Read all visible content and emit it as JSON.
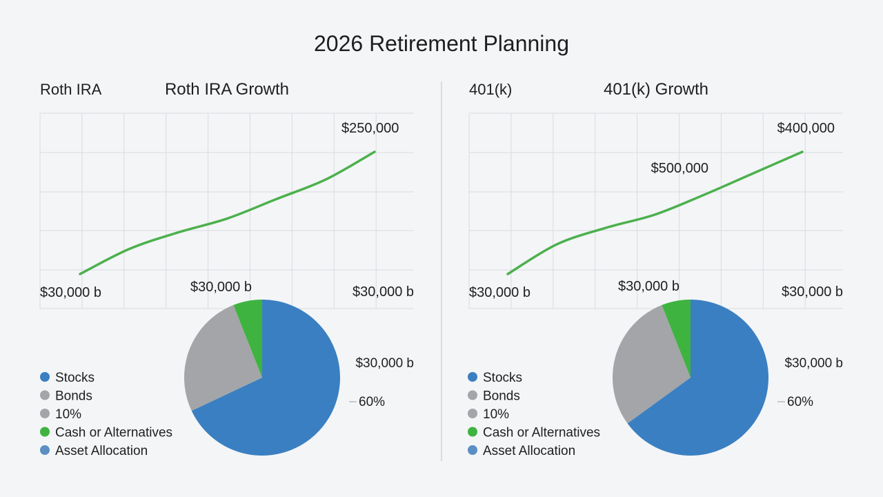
{
  "title": "2026 Retirement Planning",
  "colors": {
    "background": "#f3f5f7",
    "grid": "#d9dce0",
    "divider": "#cfd3d7",
    "line": "#4cb04c",
    "stocks": "#3a7fc1",
    "bonds": "#a3a5a8",
    "cash": "#3fb33f"
  },
  "chart_data": [
    {
      "type": "line",
      "panel_label": "Roth IRA",
      "title": "Roth IRA Growth",
      "series": [
        {
          "values": [
            30000,
            75000,
            105000,
            130000,
            165000,
            200000,
            250000
          ]
        }
      ],
      "annotations": [
        "$250,000",
        "$30,000 b",
        "$30,000 b",
        "$30,000 b"
      ]
    },
    {
      "type": "pie",
      "panel": "Roth IRA",
      "slices": [
        {
          "label": "Stocks",
          "value": 68,
          "color": "#3a7fc1"
        },
        {
          "label": "Bonds",
          "value": 26,
          "color": "#a3a5a8"
        },
        {
          "label": "Cash or Alternatives",
          "value": 6,
          "color": "#3fb33f"
        }
      ],
      "legend": [
        {
          "label": "Stocks",
          "color": "#3a7fc1"
        },
        {
          "label": "Bonds",
          "color": "#a3a5a8"
        },
        {
          "label": "10%",
          "color": "#a3a5a8"
        },
        {
          "label": "Cash or Alternatives",
          "color": "#3fb33f"
        },
        {
          "label": "Asset Allocation",
          "color": "#5b8fc4"
        }
      ],
      "legend_placement": "left",
      "annotations": [
        "$30,000 b",
        "60%"
      ]
    },
    {
      "type": "line",
      "panel_label": "401(k)",
      "title": "401(k) Growth",
      "series": [
        {
          "values": [
            30000,
            120000,
            170000,
            210000,
            270000,
            335000,
            400000
          ]
        }
      ],
      "annotations": [
        "$400,000",
        "$500,000",
        "$30,000 b",
        "$30,000 b",
        "$30,000 b"
      ]
    },
    {
      "type": "pie",
      "panel": "401(k)",
      "slices": [
        {
          "label": "Stocks",
          "value": 65,
          "color": "#3a7fc1"
        },
        {
          "label": "Bonds",
          "value": 29,
          "color": "#a3a5a8"
        },
        {
          "label": "Cash or Alternatives",
          "value": 6,
          "color": "#3fb33f"
        }
      ],
      "legend": [
        {
          "label": "Stocks",
          "color": "#3a7fc1"
        },
        {
          "label": "Bonds",
          "color": "#a3a5a8"
        },
        {
          "label": "10%",
          "color": "#a3a5a8"
        },
        {
          "label": "Cash or Alternatives",
          "color": "#3fb33f"
        },
        {
          "label": "Asset Allocation",
          "color": "#5b8fc4"
        }
      ],
      "legend_placement": "left",
      "annotations": [
        "$30,000 b",
        "60%"
      ]
    }
  ]
}
